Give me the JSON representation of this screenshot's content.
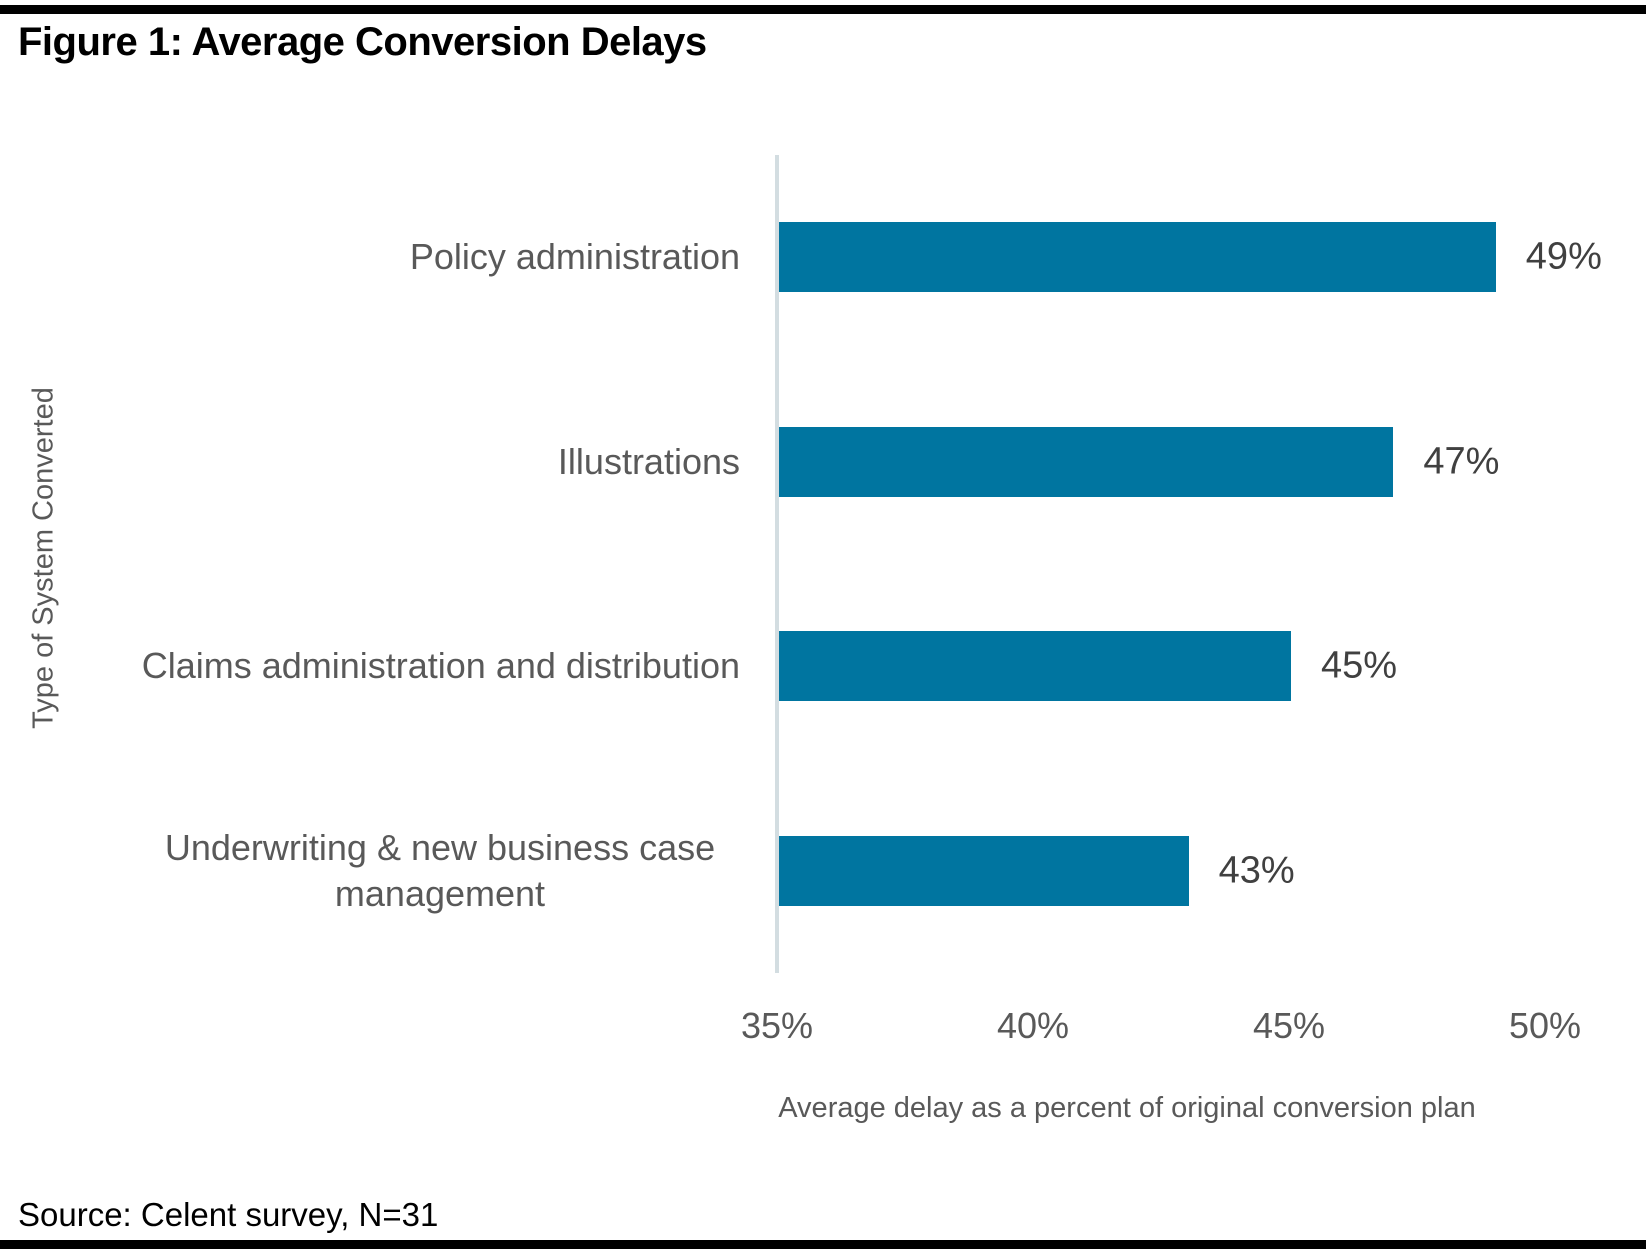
{
  "figure": {
    "title": "Figure 1: Average Conversion Delays",
    "source": "Source: Celent survey, N=31"
  },
  "chart_data": {
    "type": "bar",
    "orientation": "horizontal",
    "title": "Figure 1: Average Conversion Delays",
    "categories": [
      "Policy administration",
      "Illustrations",
      "Claims administration and distribution",
      "Underwriting & new business case management"
    ],
    "values": [
      49,
      47,
      45,
      43
    ],
    "value_labels": [
      "49%",
      "47%",
      "45%",
      "43%"
    ],
    "xlabel": "Average delay as a percent of original conversion plan",
    "ylabel": "Type of System Converted",
    "xlim": [
      35,
      50
    ],
    "x_ticks": [
      "35%",
      "40%",
      "45%",
      "50%"
    ],
    "x_tick_values": [
      35,
      40,
      45,
      50
    ],
    "grid": false,
    "legend": false,
    "source_note": "Source: Celent survey, N=31",
    "colors": {
      "bar": "#0075a0",
      "axis_line": "#d3dde1",
      "category_text": "#595959",
      "tick_text": "#595959",
      "value_text": "#404040",
      "title_text": "#000000",
      "source_text": "#000000"
    }
  }
}
